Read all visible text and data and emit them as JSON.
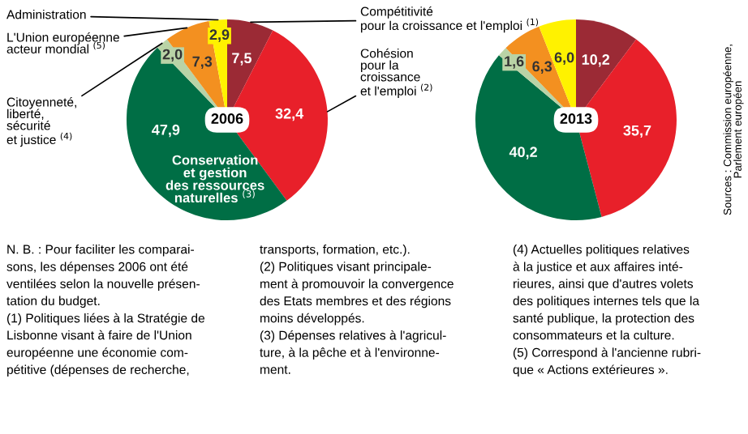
{
  "chart_data": [
    {
      "type": "pie",
      "title": "2006",
      "categories": [
        "Compétitivité\npour la croissance et l'emploi $^{(1)}$",
        "Cohésion\npour la\ncroissance\net l'emploi $^{(2)}$",
        "Conservation\net gestion\ndes ressources\nnaturelles $^{(3)}$",
        "Citoyenneté,\nliberté,\nsécurité\net justice $^{(4)}$",
        "L'Union européenne\nacteur mondial $^{(5)}$",
        "Administration"
      ],
      "values": [
        7.5,
        32.4,
        47.9,
        2.0,
        7.3,
        2.9
      ],
      "value_labels": [
        "7,5",
        "32,4",
        "47,9",
        "2,0",
        "7,3",
        "2,9"
      ],
      "colors": [
        "#9b2a35",
        "#e8202a",
        "#006e45",
        "#b9d3a6",
        "#f39020",
        "#fff200"
      ],
      "annotations": [
        "N. B. : Pour faciliter les comparai-\nsons, les dépenses 2006 ont été\nventilées selon la nouvelle présen-\ntation du budget.",
        "(1) Politiques liées à la Stratégie de\nLisbonne visant à faire de l'Union\neuropéenne une économie com-\npétitive (dépenses de recherche,\ntransports, formation, etc.).",
        "(2) Politiques visant principale-\nment à promouvoir la convergence\ndes Etats membres et des régions\nmoins développés.",
        "(3) Dépenses relatives à l'agricul-\nture, à la pêche et à l'environne-\nment.",
        "(4) Actuelles politiques relatives\nà la justice et aux affaires inté-\nrieures, ainsi que d'autres volets\ndes politiques internes tels que la\nsanté publique, la protection des\nconsommateurs et la culture.",
        "(5) Correspond à l'ancienne rubri-\nque « Actions extérieures »."
      ]
    },
    {
      "type": "pie",
      "title": "2013",
      "categories": [
        null,
        null,
        null,
        null,
        null,
        null
      ],
      "values": [
        10.2,
        35.7,
        40.2,
        1.6,
        6.3,
        6.0
      ],
      "value_labels": [
        "10,2",
        "35,7",
        "40,2",
        "1,6",
        "6,3",
        "6,0"
      ],
      "colors": [
        "#9b2a35",
        "#e8202a",
        "#006e45",
        "#b9d3a6",
        "#f39020",
        "#fff200"
      ],
      "annotations": [
        "Sources : Commission européenne,\nParlement européen"
      ]
    }
  ]
}
